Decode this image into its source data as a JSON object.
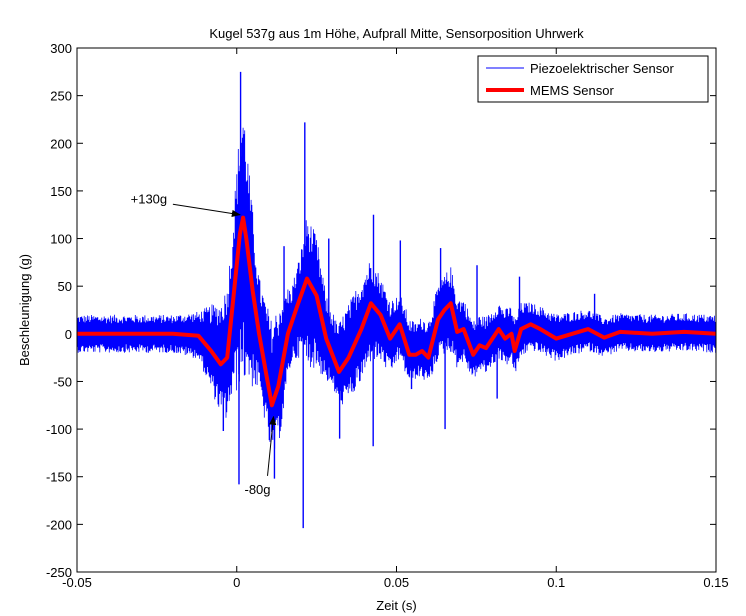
{
  "chart_data": {
    "type": "line",
    "title": "Kugel 537g aus 1m Höhe, Aufprall Mitte, Sensorposition Uhrwerk",
    "xlabel": "Zeit (s)",
    "ylabel": "Beschleunigung (g)",
    "xlim": [
      -0.05,
      0.15
    ],
    "ylim": [
      -250,
      300
    ],
    "xticks": [
      -0.05,
      0,
      0.05,
      0.1,
      0.15
    ],
    "xtick_labels": [
      "-0.05",
      "0",
      "0.05",
      "0.1",
      "0.15"
    ],
    "yticks": [
      -250,
      -200,
      -150,
      -100,
      -50,
      0,
      50,
      100,
      150,
      200,
      250,
      300
    ],
    "ytick_labels": [
      "-250",
      "-200",
      "-150",
      "-100",
      "-50",
      "0",
      "50",
      "100",
      "150",
      "200",
      "250",
      "300"
    ],
    "grid": false,
    "legend_position": "top-right",
    "series": [
      {
        "name": "Piezoelektrischer Sensor",
        "color": "#0000ff",
        "style": "noisy signal",
        "x": [
          -0.05,
          -0.04,
          -0.03,
          -0.02,
          -0.012,
          -0.008,
          -0.004,
          -0.002,
          0,
          0.002,
          0.004,
          0.007,
          0.01,
          0.012,
          0.014,
          0.017,
          0.02,
          0.022,
          0.025,
          0.028,
          0.031,
          0.034,
          0.038,
          0.042,
          0.045,
          0.048,
          0.05,
          0.053,
          0.056,
          0.06,
          0.064,
          0.067,
          0.07,
          0.075,
          0.08,
          0.085,
          0.088,
          0.092,
          0.1,
          0.11,
          0.12,
          0.13,
          0.14,
          0.15
        ],
        "amplitude": [
          20,
          20,
          20,
          20,
          25,
          45,
          65,
          80,
          120,
          150,
          110,
          60,
          70,
          75,
          70,
          40,
          55,
          80,
          70,
          45,
          40,
          50,
          55,
          55,
          45,
          40,
          35,
          35,
          30,
          35,
          40,
          45,
          35,
          30,
          30,
          30,
          30,
          25,
          25,
          22,
          20,
          20,
          20,
          20
        ],
        "spikes": [
          {
            "x": 0.0012,
            "y": 275
          },
          {
            "x": 0.0007,
            "y": -158
          },
          {
            "x": -0.0042,
            "y": -102
          },
          {
            "x": 0.0043,
            "y": 112
          },
          {
            "x": 0.0118,
            "y": -152
          },
          {
            "x": 0.0148,
            "y": 92
          },
          {
            "x": 0.0213,
            "y": 222
          },
          {
            "x": 0.0208,
            "y": -204
          },
          {
            "x": 0.0288,
            "y": 100
          },
          {
            "x": 0.0322,
            "y": -110
          },
          {
            "x": 0.0428,
            "y": 125
          },
          {
            "x": 0.0427,
            "y": -118
          },
          {
            "x": 0.0512,
            "y": 98
          },
          {
            "x": 0.0547,
            "y": -58
          },
          {
            "x": 0.0638,
            "y": 90
          },
          {
            "x": 0.0652,
            "y": -100
          },
          {
            "x": 0.0752,
            "y": 72
          },
          {
            "x": 0.0815,
            "y": -68
          },
          {
            "x": 0.0885,
            "y": 60
          },
          {
            "x": 0.112,
            "y": 42
          }
        ]
      },
      {
        "name": "MEMS Sensor",
        "color": "#ff0000",
        "x": [
          -0.05,
          -0.04,
          -0.03,
          -0.02,
          -0.012,
          -0.008,
          -0.005,
          -0.003,
          -0.001,
          0.001,
          0.002,
          0.003,
          0.005,
          0.007,
          0.009,
          0.011,
          0.013,
          0.016,
          0.019,
          0.022,
          0.025,
          0.028,
          0.032,
          0.035,
          0.039,
          0.042,
          0.045,
          0.048,
          0.051,
          0.054,
          0.056,
          0.058,
          0.06,
          0.063,
          0.065,
          0.067,
          0.069,
          0.071,
          0.074,
          0.076,
          0.078,
          0.08,
          0.082,
          0.084,
          0.086,
          0.087,
          0.089,
          0.092,
          0.095,
          0.1,
          0.105,
          0.11,
          0.115,
          0.12,
          0.13,
          0.14,
          0.15
        ],
        "y": [
          0,
          0,
          0,
          0,
          -2,
          -18,
          -32,
          -25,
          40,
          105,
          122,
          100,
          45,
          0,
          -38,
          -75,
          -55,
          0,
          30,
          58,
          40,
          -5,
          -40,
          -25,
          5,
          32,
          20,
          -5,
          10,
          -22,
          -22,
          -18,
          -25,
          15,
          25,
          32,
          2,
          5,
          -22,
          -12,
          -15,
          -5,
          5,
          -5,
          0,
          -18,
          5,
          10,
          5,
          -5,
          0,
          5,
          -4,
          2,
          0,
          2,
          0
        ]
      }
    ],
    "annotations": [
      {
        "text": "+130g",
        "x": -0.0275,
        "y": 137,
        "arrow_to": {
          "x": 0.001,
          "y": 125
        }
      },
      {
        "text": "-80g",
        "x": 0.0065,
        "y": -168,
        "arrow_to": {
          "x": 0.0115,
          "y": -87
        }
      }
    ]
  }
}
